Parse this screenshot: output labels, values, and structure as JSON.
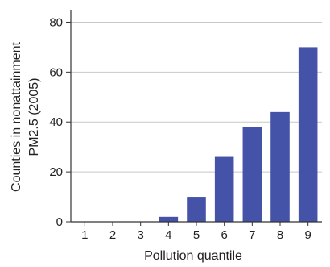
{
  "chart_data": {
    "type": "bar",
    "categories": [
      "1",
      "2",
      "3",
      "4",
      "5",
      "6",
      "7",
      "8",
      "9"
    ],
    "values": [
      0,
      0,
      0,
      2,
      10,
      26,
      38,
      44,
      70
    ],
    "xlabel": "Pollution quantile",
    "ylabel_lines": [
      "Counties in nonattainment",
      "PM2.5 (2005)"
    ],
    "ylim": [
      0,
      85
    ],
    "yticks": [
      0,
      20,
      40,
      60,
      80
    ],
    "grid": true,
    "bar_color": "#4453a8",
    "grid_color": "#c8c8c8",
    "axis_color": "#333333"
  }
}
